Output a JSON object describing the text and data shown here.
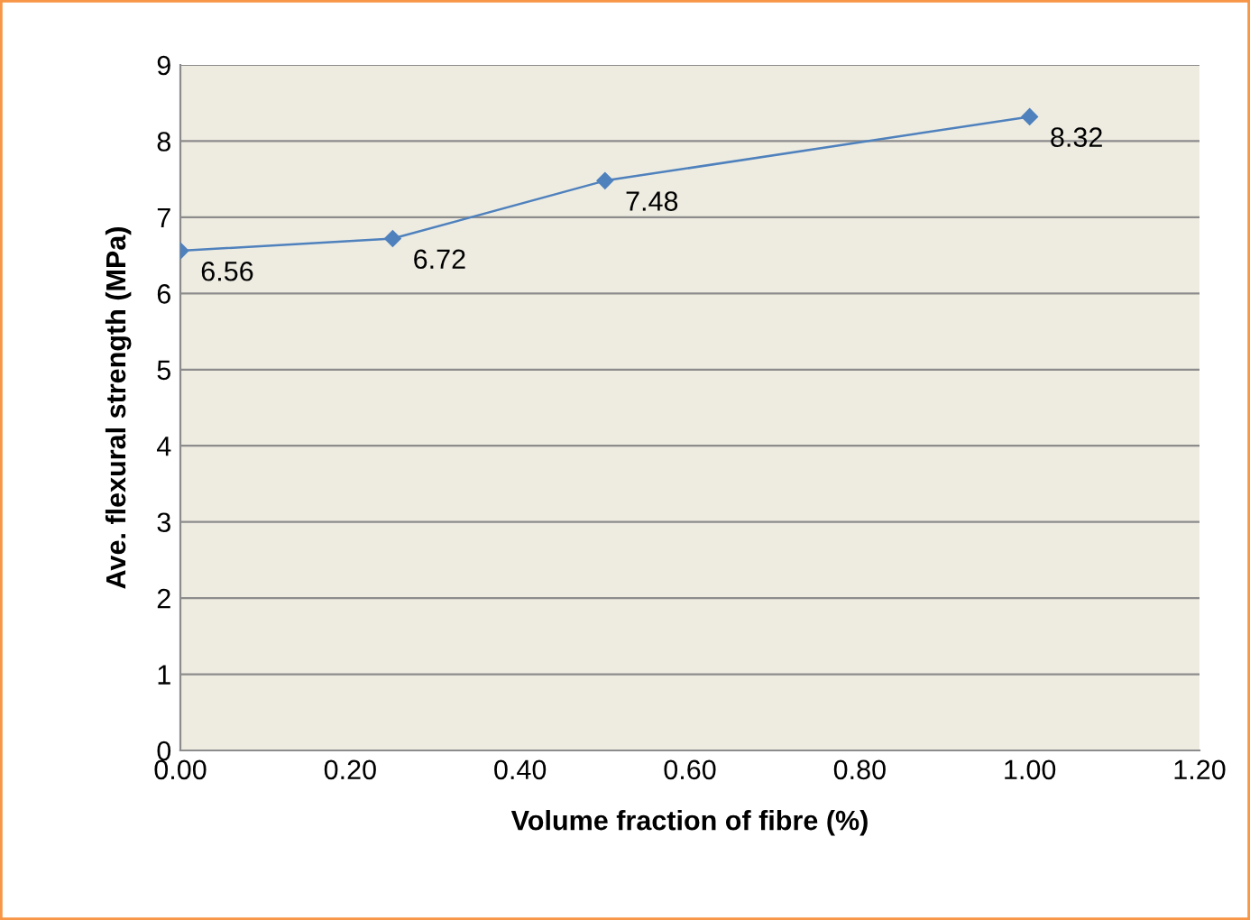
{
  "chart_data": {
    "type": "line",
    "xlabel": "Volume fraction of fibre (%)",
    "ylabel": "Ave. flexural strength (MPa)",
    "x": [
      0,
      0.25,
      0.5,
      1.0
    ],
    "series": [
      {
        "color": "#4f81bd",
        "values": [
          6.56,
          6.72,
          7.48,
          8.32
        ]
      }
    ],
    "xlim": [
      0,
      1.2
    ],
    "xticks": [
      {
        "value": 0,
        "label": "0.00"
      },
      {
        "value": 0.2,
        "label": "0.20"
      },
      {
        "value": 0.4,
        "label": "0.40"
      },
      {
        "value": 0.6,
        "label": "0.60"
      },
      {
        "value": 0.8,
        "label": "0.80"
      },
      {
        "value": 1.0,
        "label": "1.00"
      },
      {
        "value": 1.2,
        "label": "1.20"
      }
    ],
    "ylim": [
      0,
      9
    ],
    "yticks": [
      0,
      1,
      2,
      3,
      4,
      5,
      6,
      7,
      8,
      9
    ],
    "grid": "y",
    "marker": "diamond",
    "line_style": "solid",
    "data_labels": true
  }
}
